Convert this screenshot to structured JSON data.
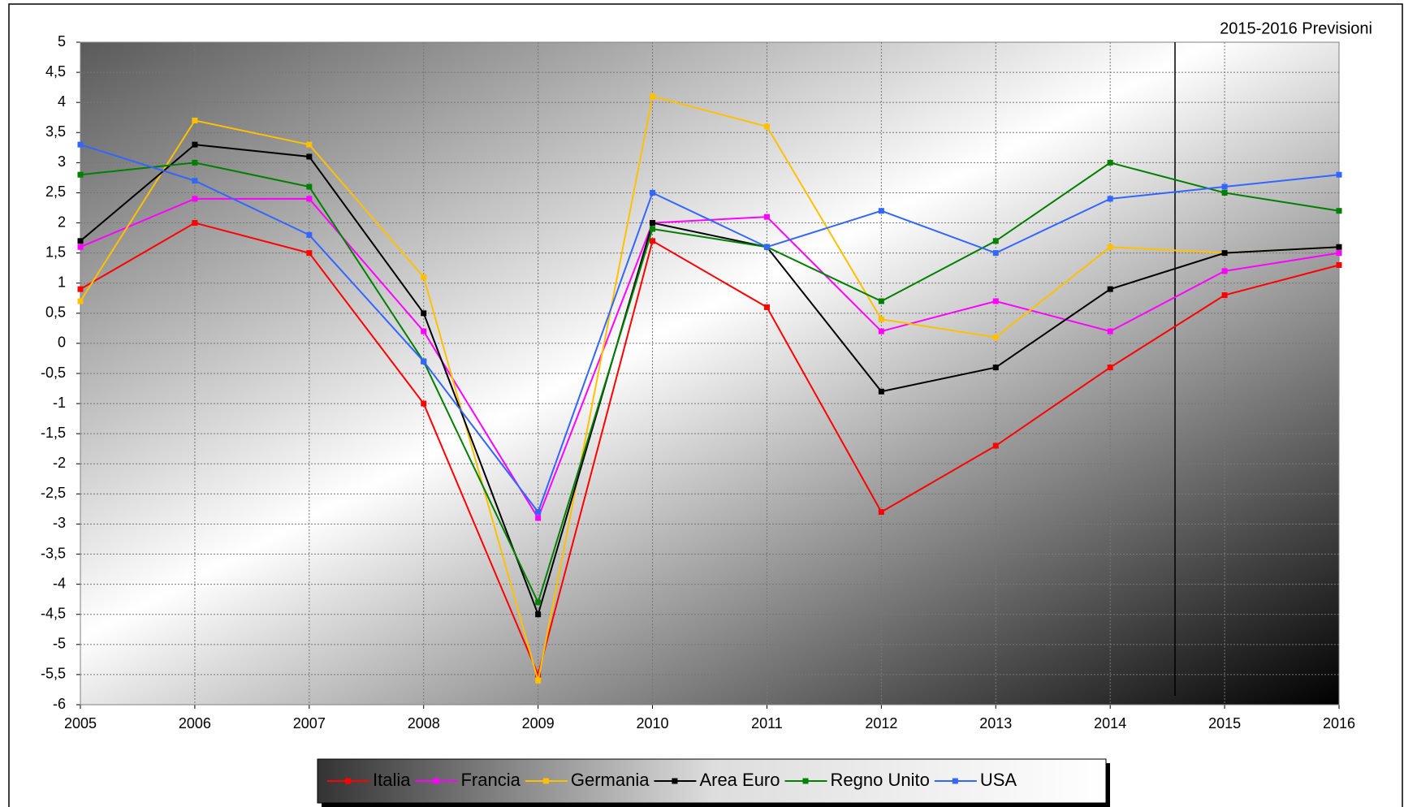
{
  "chart_data": {
    "type": "line",
    "annotation": "2015-2016 Previsioni",
    "categories": [
      "2005",
      "2006",
      "2007",
      "2008",
      "2009",
      "2010",
      "2011",
      "2012",
      "2013",
      "2014",
      "2015",
      "2016"
    ],
    "series": [
      {
        "name": "Italia",
        "color": "#ff0000",
        "values": [
          0.9,
          2.0,
          1.5,
          -1.0,
          -5.5,
          1.7,
          0.6,
          -2.8,
          -1.7,
          -0.4,
          0.8,
          1.3
        ]
      },
      {
        "name": "Francia",
        "color": "#ff00ff",
        "values": [
          1.6,
          2.4,
          2.4,
          0.2,
          -2.9,
          2.0,
          2.1,
          0.2,
          0.7,
          0.2,
          1.2,
          1.5
        ]
      },
      {
        "name": "Germania",
        "color": "#ffc000",
        "values": [
          0.7,
          3.7,
          3.3,
          1.1,
          -5.6,
          4.1,
          3.6,
          0.4,
          0.1,
          1.6,
          1.5,
          1.6
        ]
      },
      {
        "name": "Area Euro",
        "color": "#000000",
        "values": [
          1.7,
          3.3,
          3.1,
          0.5,
          -4.5,
          2.0,
          1.6,
          -0.8,
          -0.4,
          0.9,
          1.5,
          1.6
        ]
      },
      {
        "name": "Regno Unito",
        "color": "#008000",
        "values": [
          2.8,
          3.0,
          2.6,
          -0.3,
          -4.3,
          1.9,
          1.6,
          0.7,
          1.7,
          3.0,
          2.5,
          2.2
        ]
      },
      {
        "name": "USA",
        "color": "#3366ff",
        "values": [
          3.3,
          2.7,
          1.8,
          -0.3,
          -2.8,
          2.5,
          1.6,
          2.2,
          1.5,
          2.4,
          2.6,
          2.8
        ]
      }
    ],
    "ylim": [
      -6,
      5
    ],
    "yticks": [
      -6,
      {
        "value": -5.5,
        "label": "-5,5"
      },
      -5,
      {
        "value": -4.5,
        "label": "-4,5"
      },
      -4,
      {
        "value": -3.5,
        "label": "-3,5"
      },
      -3,
      {
        "value": -2.5,
        "label": "-2,5"
      },
      -2,
      {
        "value": -1.5,
        "label": "-1,5"
      },
      -1,
      {
        "value": -0.5,
        "label": "-0,5"
      },
      0,
      {
        "value": 0.5,
        "label": "0,5"
      },
      1,
      {
        "value": 1.5,
        "label": "1,5"
      },
      2,
      {
        "value": 2.5,
        "label": "2,5"
      },
      3,
      {
        "value": 3.5,
        "label": "3,5"
      },
      4,
      {
        "value": 4.5,
        "label": "4,5"
      },
      5
    ],
    "grid": true
  }
}
